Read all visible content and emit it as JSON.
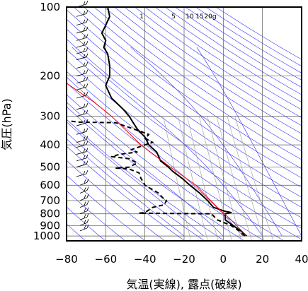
{
  "chart_data": {
    "type": "line",
    "xlabel": "気温(実線), 露点(破線)",
    "ylabel": "気圧(hPa)",
    "xlim": [
      -80,
      40
    ],
    "ylim": [
      1050,
      100
    ],
    "y_scale": "log",
    "x_ticks": [
      "−80",
      "−60",
      "−40",
      "−20",
      "0",
      "20",
      "40"
    ],
    "y_ticks": [
      "100",
      "200",
      "300",
      "400",
      "500",
      "600",
      "700",
      "800",
      "900",
      "1000"
    ],
    "mixing_ratio_labels": [
      "1",
      "5",
      "10",
      "15",
      "20g"
    ],
    "grid": true,
    "series": [
      {
        "line_style": "solid",
        "color": "#000000",
        "points": [
          [
            12,
            1000
          ],
          [
            9,
            950
          ],
          [
            5,
            900
          ],
          [
            1,
            850
          ],
          [
            1,
            800
          ],
          [
            4,
            790
          ],
          [
            1,
            780
          ],
          [
            -5,
            750
          ],
          [
            -8,
            700
          ],
          [
            -12,
            650
          ],
          [
            -17,
            600
          ],
          [
            -21,
            560
          ],
          [
            -26,
            520
          ],
          [
            -28,
            500
          ],
          [
            -32,
            470
          ],
          [
            -34,
            430
          ],
          [
            -38,
            400
          ],
          [
            -40,
            370
          ],
          [
            -44,
            340
          ],
          [
            -46,
            320
          ],
          [
            -48,
            300
          ],
          [
            -51,
            280
          ],
          [
            -57,
            250
          ],
          [
            -59,
            230
          ],
          [
            -60,
            220
          ],
          [
            -58,
            200
          ],
          [
            -58,
            180
          ],
          [
            -59,
            160
          ],
          [
            -61,
            150
          ],
          [
            -60,
            140
          ],
          [
            -62,
            130
          ],
          [
            -60,
            120
          ],
          [
            -58,
            110
          ],
          [
            -59,
            100
          ]
        ]
      },
      {
        "line_style": "dashed",
        "color": "#000000",
        "points": [
          [
            11,
            1000
          ],
          [
            8,
            950
          ],
          [
            4,
            900
          ],
          [
            -3,
            850
          ],
          [
            -6,
            800
          ],
          [
            -43,
            795
          ],
          [
            -40,
            790
          ],
          [
            -38,
            770
          ],
          [
            -36,
            750
          ],
          [
            -30,
            730
          ],
          [
            -29,
            700
          ],
          [
            -31,
            680
          ],
          [
            -33,
            650
          ],
          [
            -40,
            600
          ],
          [
            -42,
            560
          ],
          [
            -43,
            530
          ],
          [
            -48,
            510
          ],
          [
            -55,
            505
          ],
          [
            -48,
            500
          ],
          [
            -44,
            480
          ],
          [
            -48,
            460
          ],
          [
            -57,
            450
          ],
          [
            -53,
            440
          ],
          [
            -44,
            430
          ],
          [
            -47,
            420
          ],
          [
            -40,
            400
          ],
          [
            -36,
            390
          ],
          [
            -40,
            375
          ],
          [
            -38,
            360
          ],
          [
            -44,
            345
          ],
          [
            -55,
            320
          ],
          [
            -74,
            318
          ],
          [
            -78,
            315
          ]
        ]
      },
      {
        "line_style": "solid",
        "color": "#ff0000",
        "points": [
          [
            12,
            1000
          ],
          [
            4,
            850
          ],
          [
            -3,
            750
          ],
          [
            -14,
            600
          ],
          [
            -27,
            500
          ],
          [
            -42,
            400
          ],
          [
            -57,
            300
          ],
          [
            -66,
            260
          ],
          [
            -80,
            215
          ]
        ]
      }
    ]
  }
}
